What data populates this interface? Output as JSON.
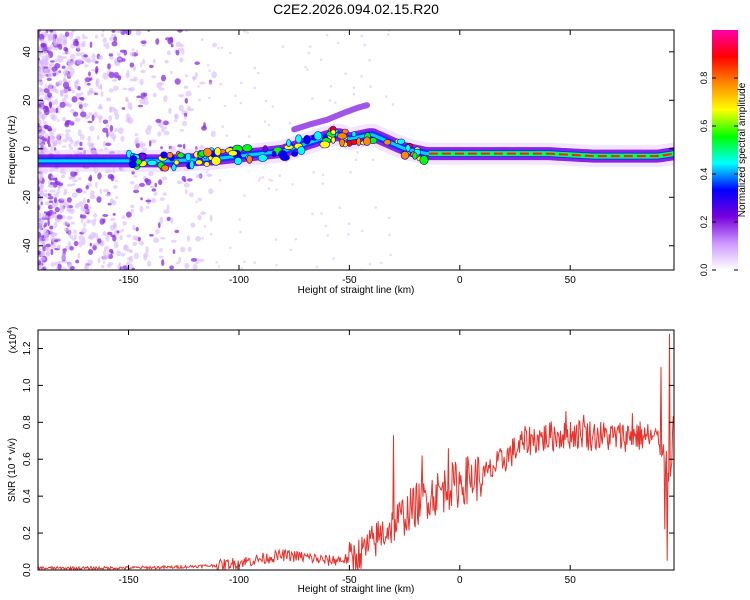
{
  "title": "C2E2.2026.094.02.15.R20",
  "chart_data": [
    {
      "type": "heatmap",
      "name": "spectrogram",
      "xlabel": "Height of straight line (km)",
      "ylabel": "Frequency (Hz)",
      "xlim": [
        -191,
        97
      ],
      "ylim": [
        -50,
        49
      ],
      "xticks": [
        -150,
        -100,
        -50,
        0,
        50
      ],
      "yticks": [
        -40,
        -20,
        0,
        20,
        40
      ],
      "grid": false,
      "ridge": {
        "x": [
          -191,
          -170,
          -150,
          -130,
          -110,
          -100,
          -90,
          -80,
          -70,
          -60,
          -55,
          -50,
          -45,
          -40,
          -35,
          -30,
          -25,
          -20,
          -15,
          -10,
          -5,
          0,
          10,
          20,
          40,
          60,
          80,
          90,
          97
        ],
        "y": [
          -5,
          -5,
          -5,
          -5,
          -4,
          -3,
          -2,
          -1,
          2,
          5,
          6,
          4,
          5,
          6,
          4,
          2,
          0,
          -1,
          -2,
          -2,
          -2,
          -2,
          -2,
          -2,
          -2,
          -3,
          -3,
          -3,
          -2
        ]
      },
      "colorbar": {
        "label": "Normalized spectral amplitude",
        "range": [
          0,
          1
        ],
        "ticks": [
          "0.0",
          "0.2",
          "0.4",
          "0.6",
          "0.8"
        ],
        "tick_values": [
          0.0,
          0.2,
          0.4,
          0.6,
          0.8
        ],
        "colors": [
          "#ffffff",
          "#cc99ff",
          "#7700dd",
          "#0000ff",
          "#00ffff",
          "#00ff00",
          "#ffff00",
          "#ff8800",
          "#ff0000",
          "#ff00aa"
        ]
      }
    },
    {
      "type": "line",
      "name": "snr",
      "xlabel": "Height of straight line (km)",
      "ylabel": "SNR (10 * v/v)",
      "multiplier_base": "(x10",
      "multiplier_exp": "4",
      "multiplier_close": ")",
      "xlim": [
        -191,
        97
      ],
      "ylim": [
        0,
        1.3
      ],
      "xticks": [
        -150,
        -100,
        -50,
        0,
        50
      ],
      "yticks": [
        0.0,
        0.2,
        0.4,
        0.6,
        0.8,
        1.0,
        1.2
      ],
      "ytick_labels": [
        "0.0",
        "0.2",
        "0.4",
        "0.6",
        "0.8",
        "1.0",
        "1.2"
      ],
      "color": "#e8312b",
      "trend": {
        "x": [
          -191,
          -170,
          -150,
          -130,
          -120,
          -110,
          -100,
          -90,
          -80,
          -70,
          -60,
          -50,
          -45,
          -40,
          -35,
          -30,
          -25,
          -20,
          -15,
          -10,
          -5,
          0,
          5,
          10,
          15,
          20,
          25,
          30,
          40,
          50,
          60,
          70,
          80,
          85,
          90,
          93,
          95,
          97
        ],
        "y": [
          0.01,
          0.01,
          0.012,
          0.015,
          0.02,
          0.025,
          0.04,
          0.06,
          0.08,
          0.07,
          0.05,
          0.06,
          0.09,
          0.14,
          0.2,
          0.25,
          0.3,
          0.35,
          0.4,
          0.42,
          0.45,
          0.47,
          0.5,
          0.5,
          0.55,
          0.6,
          0.65,
          0.7,
          0.72,
          0.74,
          0.73,
          0.72,
          0.73,
          0.72,
          0.7,
          0.65,
          0.5,
          0.8
        ]
      },
      "spikes": [
        {
          "x": -30,
          "y": 0.73
        },
        {
          "x": -17,
          "y": 0.62
        },
        {
          "x": -5,
          "y": 0.66
        },
        {
          "x": 48,
          "y": 0.86
        },
        {
          "x": 56,
          "y": 0.84
        },
        {
          "x": 78,
          "y": 0.85
        },
        {
          "x": 91,
          "y": 1.1
        },
        {
          "x": 95,
          "y": 1.28
        },
        {
          "x": 93,
          "y": 0.22
        },
        {
          "x": 94,
          "y": 0.05
        }
      ]
    }
  ]
}
